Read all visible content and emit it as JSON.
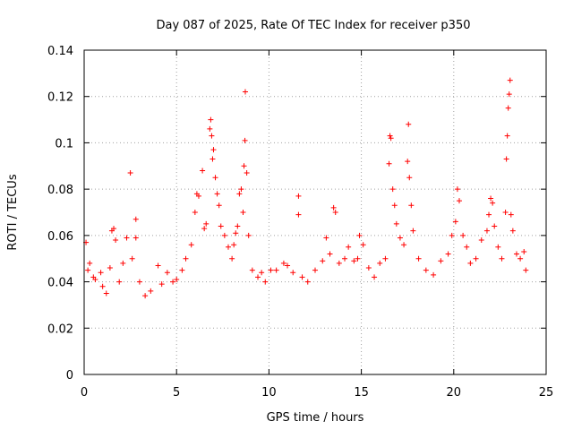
{
  "chart_data": {
    "type": "scatter",
    "title": "Day 087 of 2025, Rate Of TEC Index for receiver p350",
    "xlabel": "GPS time / hours",
    "ylabel": "ROTI / TECUs",
    "xlim": [
      0,
      25
    ],
    "ylim": [
      0,
      0.14
    ],
    "xticks": [
      0,
      5,
      10,
      15,
      20,
      25
    ],
    "yticks": [
      0,
      0.02,
      0.04,
      0.06,
      0.08,
      0.1,
      0.12,
      0.14
    ],
    "xtick_labels": [
      "0",
      "5",
      "10",
      "15",
      "20",
      "25"
    ],
    "ytick_labels": [
      "0",
      "0.02",
      "0.04",
      "0.06",
      "0.08",
      "0.1",
      "0.12",
      "0.14"
    ],
    "grid": true,
    "marker": "+",
    "series": [
      {
        "name": "ROTI",
        "color": "#ff0000",
        "points": [
          [
            0.1,
            0.057
          ],
          [
            0.2,
            0.045
          ],
          [
            0.3,
            0.048
          ],
          [
            0.5,
            0.042
          ],
          [
            0.6,
            0.041
          ],
          [
            0.9,
            0.044
          ],
          [
            1.0,
            0.038
          ],
          [
            1.2,
            0.035
          ],
          [
            1.4,
            0.046
          ],
          [
            1.5,
            0.062
          ],
          [
            1.6,
            0.063
          ],
          [
            1.7,
            0.058
          ],
          [
            1.9,
            0.04
          ],
          [
            2.1,
            0.048
          ],
          [
            2.3,
            0.059
          ],
          [
            2.5,
            0.087
          ],
          [
            2.6,
            0.05
          ],
          [
            2.8,
            0.067
          ],
          [
            2.8,
            0.059
          ],
          [
            3.0,
            0.04
          ],
          [
            3.3,
            0.034
          ],
          [
            3.6,
            0.036
          ],
          [
            4.0,
            0.047
          ],
          [
            4.2,
            0.039
          ],
          [
            4.5,
            0.044
          ],
          [
            4.8,
            0.04
          ],
          [
            5.0,
            0.041
          ],
          [
            5.3,
            0.045
          ],
          [
            5.5,
            0.05
          ],
          [
            5.8,
            0.056
          ],
          [
            6.0,
            0.07
          ],
          [
            6.1,
            0.078
          ],
          [
            6.2,
            0.077
          ],
          [
            6.4,
            0.088
          ],
          [
            6.5,
            0.063
          ],
          [
            6.6,
            0.065
          ],
          [
            6.8,
            0.106
          ],
          [
            6.85,
            0.11
          ],
          [
            6.9,
            0.103
          ],
          [
            6.95,
            0.093
          ],
          [
            7.0,
            0.097
          ],
          [
            7.1,
            0.085
          ],
          [
            7.2,
            0.078
          ],
          [
            7.3,
            0.073
          ],
          [
            7.4,
            0.064
          ],
          [
            7.6,
            0.06
          ],
          [
            7.8,
            0.055
          ],
          [
            8.0,
            0.05
          ],
          [
            8.1,
            0.056
          ],
          [
            8.2,
            0.061
          ],
          [
            8.3,
            0.064
          ],
          [
            8.4,
            0.078
          ],
          [
            8.5,
            0.08
          ],
          [
            8.6,
            0.07
          ],
          [
            8.65,
            0.09
          ],
          [
            8.7,
            0.101
          ],
          [
            8.72,
            0.122
          ],
          [
            8.8,
            0.087
          ],
          [
            8.9,
            0.06
          ],
          [
            9.1,
            0.045
          ],
          [
            9.4,
            0.042
          ],
          [
            9.6,
            0.044
          ],
          [
            9.8,
            0.04
          ],
          [
            10.1,
            0.045
          ],
          [
            10.4,
            0.045
          ],
          [
            10.8,
            0.048
          ],
          [
            11.0,
            0.047
          ],
          [
            11.3,
            0.044
          ],
          [
            11.6,
            0.077
          ],
          [
            11.6,
            0.069
          ],
          [
            11.8,
            0.042
          ],
          [
            12.1,
            0.04
          ],
          [
            12.5,
            0.045
          ],
          [
            12.9,
            0.049
          ],
          [
            13.1,
            0.059
          ],
          [
            13.3,
            0.052
          ],
          [
            13.5,
            0.072
          ],
          [
            13.6,
            0.07
          ],
          [
            13.8,
            0.048
          ],
          [
            14.1,
            0.05
          ],
          [
            14.3,
            0.055
          ],
          [
            14.6,
            0.049
          ],
          [
            14.8,
            0.05
          ],
          [
            14.9,
            0.06
          ],
          [
            15.1,
            0.056
          ],
          [
            15.4,
            0.046
          ],
          [
            15.7,
            0.042
          ],
          [
            16.0,
            0.048
          ],
          [
            16.3,
            0.05
          ],
          [
            16.5,
            0.091
          ],
          [
            16.55,
            0.103
          ],
          [
            16.6,
            0.102
          ],
          [
            16.7,
            0.08
          ],
          [
            16.8,
            0.073
          ],
          [
            16.9,
            0.065
          ],
          [
            17.1,
            0.059
          ],
          [
            17.3,
            0.056
          ],
          [
            17.5,
            0.092
          ],
          [
            17.55,
            0.108
          ],
          [
            17.6,
            0.085
          ],
          [
            17.7,
            0.073
          ],
          [
            17.8,
            0.062
          ],
          [
            18.1,
            0.05
          ],
          [
            18.5,
            0.045
          ],
          [
            18.9,
            0.043
          ],
          [
            19.3,
            0.049
          ],
          [
            19.7,
            0.052
          ],
          [
            19.9,
            0.06
          ],
          [
            20.1,
            0.066
          ],
          [
            20.2,
            0.08
          ],
          [
            20.3,
            0.075
          ],
          [
            20.5,
            0.06
          ],
          [
            20.7,
            0.055
          ],
          [
            20.9,
            0.048
          ],
          [
            21.2,
            0.05
          ],
          [
            21.5,
            0.058
          ],
          [
            21.8,
            0.062
          ],
          [
            21.9,
            0.069
          ],
          [
            22.0,
            0.076
          ],
          [
            22.1,
            0.074
          ],
          [
            22.2,
            0.064
          ],
          [
            22.4,
            0.055
          ],
          [
            22.6,
            0.05
          ],
          [
            22.8,
            0.07
          ],
          [
            22.85,
            0.093
          ],
          [
            22.9,
            0.103
          ],
          [
            22.95,
            0.115
          ],
          [
            23.0,
            0.121
          ],
          [
            23.05,
            0.127
          ],
          [
            23.1,
            0.069
          ],
          [
            23.2,
            0.062
          ],
          [
            23.4,
            0.052
          ],
          [
            23.6,
            0.05
          ],
          [
            23.8,
            0.053
          ],
          [
            23.9,
            0.045
          ]
        ]
      }
    ]
  }
}
